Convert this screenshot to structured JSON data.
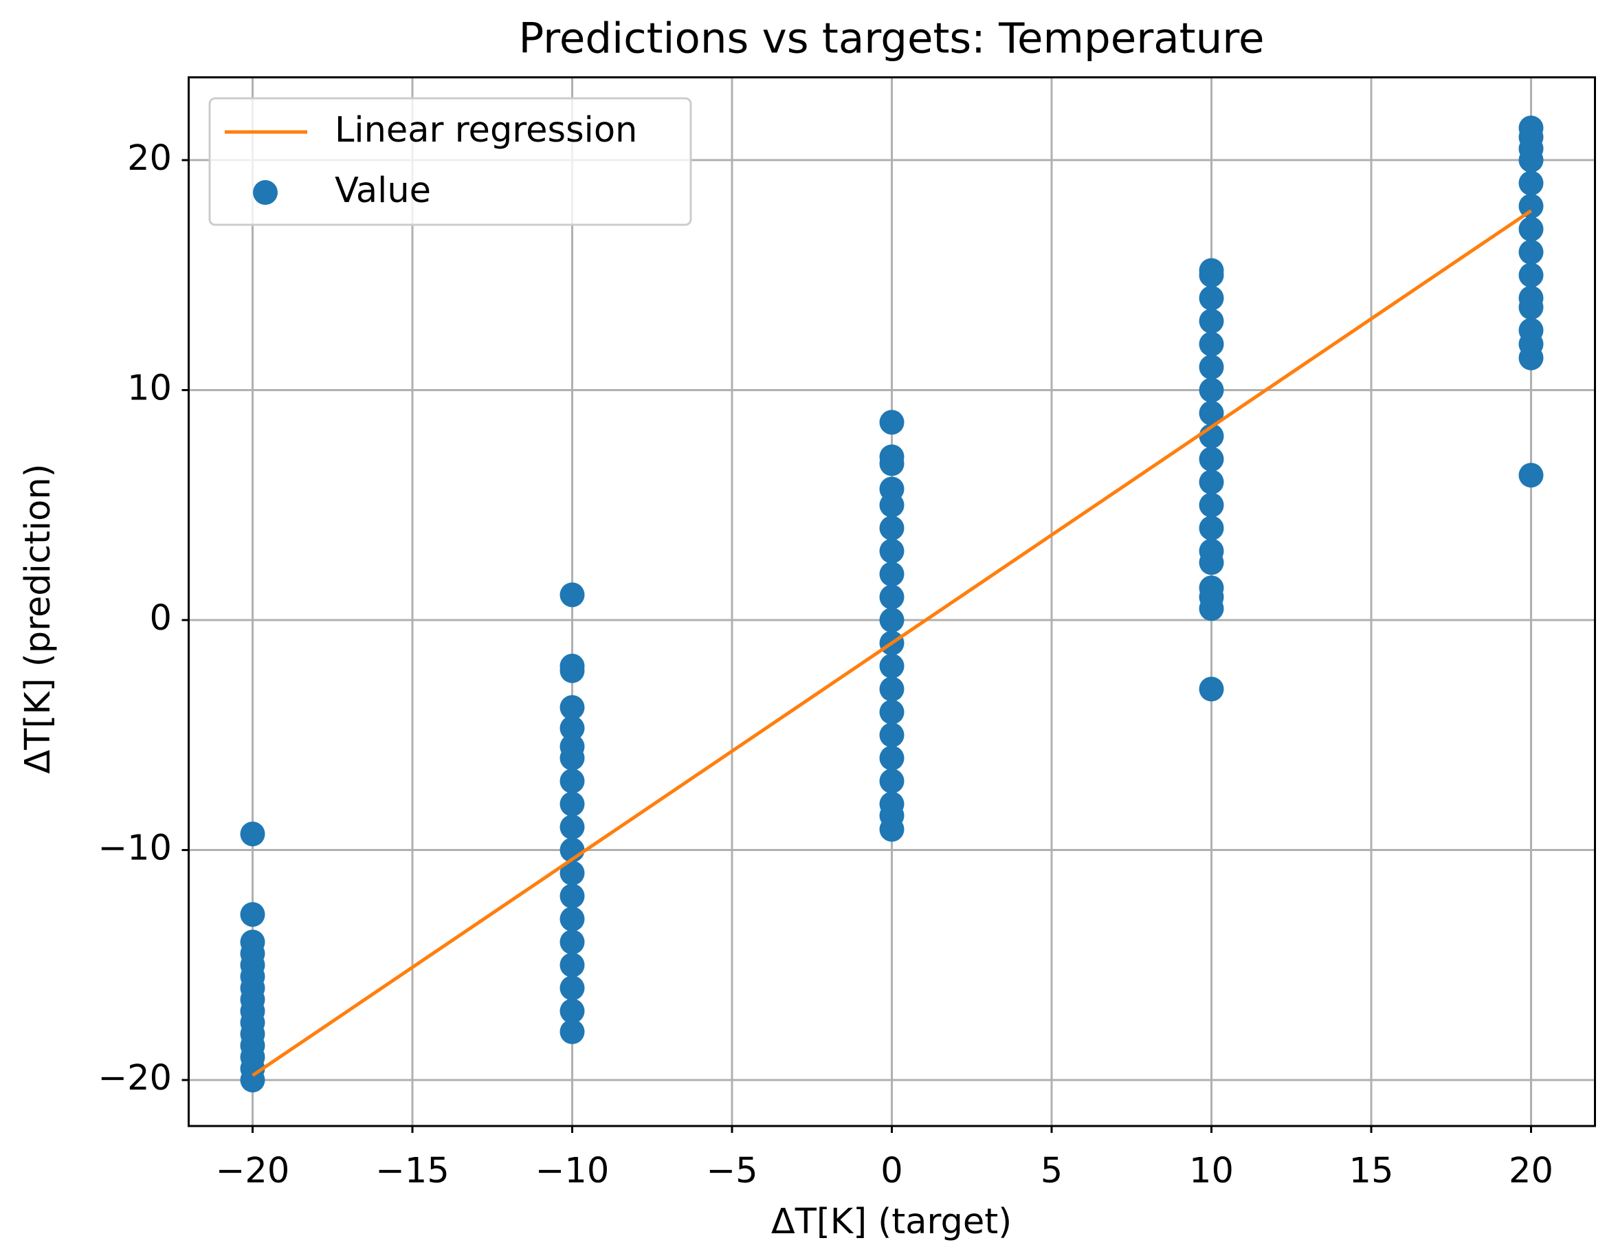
{
  "chart_data": {
    "type": "scatter",
    "title": "Predictions vs targets: Temperature",
    "xlabel": "ΔT[K] (target)",
    "ylabel": "ΔT[K] (prediction)",
    "xlim": [
      -22,
      22
    ],
    "ylim": [
      -22,
      23.6
    ],
    "xticks": [
      {
        "value": -20,
        "label": "−20"
      },
      {
        "value": -15,
        "label": "−15"
      },
      {
        "value": -10,
        "label": "−10"
      },
      {
        "value": -5,
        "label": "−5"
      },
      0,
      5,
      10,
      15,
      20
    ],
    "yticks": [
      {
        "value": -20,
        "label": "−20"
      },
      {
        "value": -10,
        "label": "−10"
      },
      0,
      10,
      20
    ],
    "grid": true,
    "legend": "upper left",
    "series": [
      {
        "name": "Linear regression",
        "type": "line",
        "color": "#ff7f0e",
        "x": [
          -20,
          20
        ],
        "values": [
          -19.8,
          17.8
        ]
      },
      {
        "name": "Value",
        "type": "scatter",
        "color": "#1f77b4",
        "x": [
          -20,
          -20,
          -20,
          -20,
          -20,
          -20,
          -20,
          -20,
          -20,
          -20,
          -20,
          -20,
          -20,
          -20,
          -20,
          -10,
          -10,
          -10,
          -10,
          -10,
          -10,
          -10,
          -10,
          -10,
          -10,
          -10,
          -10,
          -10,
          -10,
          -10,
          -10,
          -10,
          -10,
          -10,
          0,
          0,
          0,
          0,
          0,
          0,
          0,
          0,
          0,
          0,
          0,
          0,
          0,
          0,
          0,
          0,
          0,
          0,
          0,
          0,
          10,
          10,
          10,
          10,
          10,
          10,
          10,
          10,
          10,
          10,
          10,
          10,
          10,
          10,
          10,
          10,
          10,
          10,
          10,
          20,
          20,
          20,
          20,
          20,
          20,
          20,
          20,
          20,
          20,
          20,
          20,
          20,
          20,
          20
        ],
        "values": [
          -20,
          -19.5,
          -19,
          -18.5,
          -18,
          -17.5,
          -17,
          -16.5,
          -16,
          -15.5,
          -15,
          -14.5,
          -14,
          -12.8,
          -9.3,
          -17.9,
          -17,
          -16,
          -15,
          -14,
          -13,
          -12,
          -11,
          -10,
          -9,
          -8,
          -7,
          -6,
          -5.5,
          -4.7,
          -3.8,
          -2.2,
          -2,
          1.1,
          -9.1,
          -8.5,
          -8,
          -7,
          -6,
          -5,
          -4,
          -3,
          -2,
          -1,
          0,
          1,
          2,
          3,
          4,
          5,
          5.7,
          6.8,
          7.1,
          8.6,
          -3,
          0.5,
          1,
          1.4,
          2.5,
          3,
          4,
          5,
          6,
          7,
          8,
          9,
          10,
          11,
          12,
          13,
          14,
          15,
          15.2,
          6.3,
          11.4,
          12,
          12.6,
          13.6,
          14,
          15,
          16,
          17,
          18,
          19,
          20,
          20.5,
          21,
          21.4
        ]
      }
    ]
  }
}
